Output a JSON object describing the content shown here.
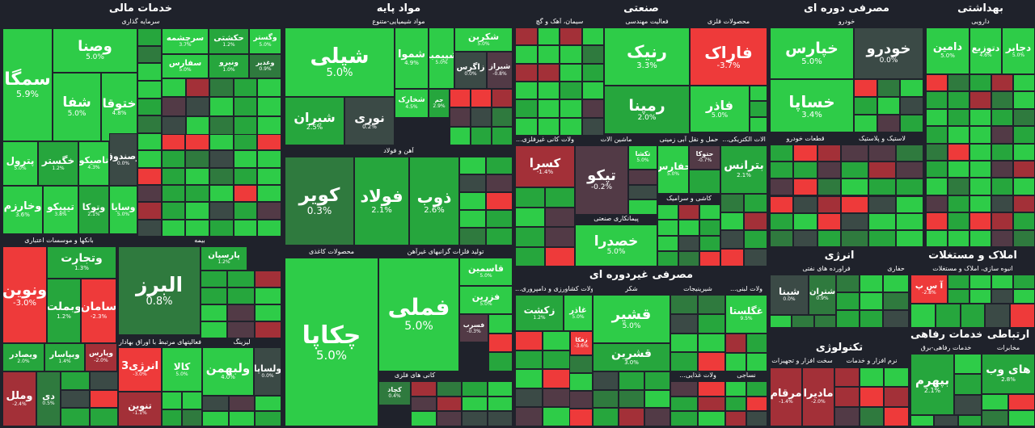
{
  "sectors": [
    {
      "id": "khadamat-mali",
      "title": "خدمات مالی"
    },
    {
      "id": "mavad-paye",
      "title": "مواد پایه"
    },
    {
      "id": "sanati",
      "title": "صنعتی"
    },
    {
      "id": "masrafi-dore",
      "title": "مصرفی دوره ای"
    },
    {
      "id": "behdashti",
      "title": "بهداشتی"
    },
    {
      "id": "masrafi-gheyr",
      "title": "مصرفی غیردوره ای"
    },
    {
      "id": "energy",
      "title": "انرژی"
    },
    {
      "id": "amlak",
      "title": "املاک و مستغلات"
    },
    {
      "id": "technology",
      "title": "تکنولوژی"
    },
    {
      "id": "refahi",
      "title": "خدمات رفاهی"
    },
    {
      "id": "ertebati",
      "title": "ارتباطی"
    }
  ],
  "groups": [
    {
      "id": "g-sarmaye",
      "label": "سرمایه گذاری"
    },
    {
      "id": "g-banks",
      "label": "بانکها و موسسات اعتباری"
    },
    {
      "id": "g-bime",
      "label": "بیمه"
    },
    {
      "id": "g-bourse",
      "label": "فعالیتهای مرتبط با اوراق بهادار"
    },
    {
      "id": "g-leasing",
      "label": "لیزینگ"
    },
    {
      "id": "g-shimi",
      "label": "مواد شیمیایی-متنوع"
    },
    {
      "id": "g-ahan",
      "label": "آهن و فولاد"
    },
    {
      "id": "g-kani",
      "label": "محصولات کاغذی"
    },
    {
      "id": "g-felezat",
      "label": "تولید فلزات گرانبهای غیرآهن"
    },
    {
      "id": "g-kani-felezi",
      "label": "کانی های فلزی"
    },
    {
      "id": "g-siman",
      "label": "سیمان، آهک و گچ"
    },
    {
      "id": "g-mohandesi",
      "label": "فعالیت مهندسی"
    },
    {
      "id": "g-felezi",
      "label": "محصولات فلزی"
    },
    {
      "id": "g-kani-gheyr",
      "label": "...ولات کانی غیرفلزی"
    },
    {
      "id": "g-mashin",
      "label": "ماشین الات"
    },
    {
      "id": "g-haml",
      "label": "حمل و نقل آبی زمینی"
    },
    {
      "id": "g-electric",
      "label": "...الات الکتریکی"
    },
    {
      "id": "g-pimankari",
      "label": "پیمانکاری صنعتی"
    },
    {
      "id": "g-kashi",
      "label": "کاشی و سرامیک"
    },
    {
      "id": "g-khodro",
      "label": "خودرو"
    },
    {
      "id": "g-ghataat",
      "label": "قطعات خودرو"
    },
    {
      "id": "g-lastik",
      "label": "لاستیک و پلاستیک"
    },
    {
      "id": "g-daroei",
      "label": "دارویی"
    },
    {
      "id": "g-keshavarzi",
      "label": "...ولات کشاورزی و دامپروری"
    },
    {
      "id": "g-shekar",
      "label": "شکر"
    },
    {
      "id": "g-shir",
      "label": "شیرینیجات"
    },
    {
      "id": "g-labani",
      "label": "...ولات لبنی"
    },
    {
      "id": "g-ghazaei",
      "label": "...ولات غذایی"
    },
    {
      "id": "g-nasaji",
      "label": "نساجی"
    },
    {
      "id": "g-naft",
      "label": "فراورده های نفتی"
    },
    {
      "id": "g-hafari",
      "label": "حفاری"
    },
    {
      "id": "g-anbooh",
      "label": "انبوه سازی، املاک و مستغلات"
    },
    {
      "id": "g-narmafzar",
      "label": "سخت افزار و تجهیزات"
    },
    {
      "id": "g-narm",
      "label": "نرم افزار و خدمات"
    },
    {
      "id": "g-refahi-sub",
      "label": "خدمات رفاهی-برق"
    },
    {
      "id": "g-mokhaberat",
      "label": "مخابرات"
    }
  ],
  "tiles": [
    {
      "n": "سمگا",
      "p": "5.9%",
      "c": "g2"
    },
    {
      "n": "وصنا",
      "p": "5.0%",
      "c": "g2"
    },
    {
      "n": "شفا",
      "p": "5.0%",
      "c": "g2"
    },
    {
      "n": "ختوقا",
      "p": "4.8%",
      "c": "g2"
    },
    {
      "n": "سرچشمه",
      "p": "3.7%",
      "c": "g2"
    },
    {
      "n": "حکشتی",
      "p": "1.2%",
      "c": "g1"
    },
    {
      "n": "وگستر",
      "p": "5.0%",
      "c": "g2"
    },
    {
      "n": "سفارس",
      "p": "5.0%",
      "c": "g2"
    },
    {
      "n": "ونیرو",
      "p": "1.0%",
      "c": "g1"
    },
    {
      "n": "وغدیر",
      "p": "0.9%",
      "c": "g0"
    },
    {
      "n": "پترول",
      "p": "5.0%",
      "c": "g2"
    },
    {
      "n": "خگستر",
      "p": "1.2%",
      "c": "g1"
    },
    {
      "n": "تاصیکو",
      "p": "4.3%",
      "c": "g2"
    },
    {
      "n": "وصندوق",
      "p": "0.0%",
      "c": "gd"
    },
    {
      "n": "وخارزم",
      "p": "3.6%",
      "c": "g2"
    },
    {
      "n": "تیپیکو",
      "p": "3.8%",
      "c": "g2"
    },
    {
      "n": "وتوکا",
      "p": "2.1%",
      "c": "g1"
    },
    {
      "n": "وسایا",
      "p": "5.0%",
      "c": "g2"
    },
    {
      "n": "ونوین",
      "p": "-3.0%",
      "c": "r2"
    },
    {
      "n": "وتجارت",
      "p": "1.3%",
      "c": "g1"
    },
    {
      "n": "وبملت",
      "p": "1.2%",
      "c": "g1"
    },
    {
      "n": "سامان",
      "p": "-2.3%",
      "c": "r2"
    },
    {
      "n": "البرز",
      "p": "0.8%",
      "c": "g0"
    },
    {
      "n": "پارسیان",
      "p": "1.2%",
      "c": "g1"
    },
    {
      "n": "ویصادر",
      "p": "2.0%",
      "c": "g1"
    },
    {
      "n": "وبپاسار",
      "p": "1.4%",
      "c": "g1"
    },
    {
      "n": "وپارس",
      "p": "-2.0%",
      "c": "r1"
    },
    {
      "n": "وملل",
      "p": "-2.4%",
      "c": "r1"
    },
    {
      "n": "دی",
      "p": "0.5%",
      "c": "g0"
    },
    {
      "n": "انرژی3",
      "p": "-3.0%",
      "c": "r2"
    },
    {
      "n": "کالا",
      "p": "5.0%",
      "c": "g2"
    },
    {
      "n": "تنوین",
      "p": "-1.1%",
      "c": "r1"
    },
    {
      "n": "ولبهمن",
      "p": "4.0%",
      "c": "g2"
    },
    {
      "n": "ولساپا",
      "p": "0.0%",
      "c": "gd"
    },
    {
      "n": "شپلی",
      "p": "5.0%",
      "c": "g2"
    },
    {
      "n": "شموا",
      "p": "4.9%",
      "c": "g2"
    },
    {
      "n": "شپیمبر",
      "p": "5.0%",
      "c": "g2"
    },
    {
      "n": "شکربن",
      "p": "5.0%",
      "c": "g2"
    },
    {
      "n": "زاگرس",
      "p": "0.0%",
      "c": "gd"
    },
    {
      "n": "شیراز",
      "p": "-0.8%",
      "c": "r0"
    },
    {
      "n": "شیران",
      "p": "2.5%",
      "c": "g1"
    },
    {
      "n": "نوری",
      "p": "0.2%",
      "c": "gd"
    },
    {
      "n": "شخارک",
      "p": "4.5%",
      "c": "g2"
    },
    {
      "n": "جم",
      "p": "2.9%",
      "c": "g1"
    },
    {
      "n": "کویر",
      "p": "0.3%",
      "c": "g0"
    },
    {
      "n": "فولاد",
      "p": "2.1%",
      "c": "g1"
    },
    {
      "n": "ذوب",
      "p": "2.6%",
      "c": "g1"
    },
    {
      "n": "چکاپا",
      "p": "5.0%",
      "c": "g2"
    },
    {
      "n": "فملی",
      "p": "5.0%",
      "c": "g2"
    },
    {
      "n": "قاسمین",
      "p": "5.0%",
      "c": "g2"
    },
    {
      "n": "فزرین",
      "p": "5.0%",
      "c": "g2"
    },
    {
      "n": "فسرب",
      "p": "-0.3%",
      "c": "r0"
    },
    {
      "n": "کچاد",
      "p": "0.4%",
      "c": "g0"
    },
    {
      "n": "رنیک",
      "p": "3.3%",
      "c": "g2"
    },
    {
      "n": "فاراک",
      "p": "-3.7%",
      "c": "r2"
    },
    {
      "n": "رمپنا",
      "p": "2.0%",
      "c": "g1"
    },
    {
      "n": "فاذر",
      "p": "5.0%",
      "c": "g2"
    },
    {
      "n": "کسرا",
      "p": "-1.4%",
      "c": "r1"
    },
    {
      "n": "تپکو",
      "p": "-0.2%",
      "c": "r0"
    },
    {
      "n": "تکشا",
      "p": "5.0%",
      "c": "g2"
    },
    {
      "n": "حتوکا",
      "p": "-0.7%",
      "c": "r0"
    },
    {
      "n": "حفارس",
      "p": "5.0%",
      "c": "g2"
    },
    {
      "n": "بترانس",
      "p": "2.1%",
      "c": "g1"
    },
    {
      "n": "خصدرا",
      "p": "5.0%",
      "c": "g2"
    },
    {
      "n": "خپارس",
      "p": "5.0%",
      "c": "g2"
    },
    {
      "n": "خودرو",
      "p": "0.0%",
      "c": "gd"
    },
    {
      "n": "خساپا",
      "p": "3.4%",
      "c": "g2"
    },
    {
      "n": "دامین",
      "p": "5.0%",
      "c": "g2"
    },
    {
      "n": "دتوزیع",
      "p": "4.6%",
      "c": "g2"
    },
    {
      "n": "دجابر",
      "p": "5.0%",
      "c": "g2"
    },
    {
      "n": "زکشت",
      "p": "1.2%",
      "c": "g1"
    },
    {
      "n": "غاذر",
      "p": "5.0%",
      "c": "g2"
    },
    {
      "n": "زفکا",
      "p": "-3.6%",
      "c": "r2"
    },
    {
      "n": "قشیر",
      "p": "5.0%",
      "c": "g2"
    },
    {
      "n": "قشرین",
      "p": "3.0%",
      "c": "g1"
    },
    {
      "n": "غگلستا",
      "p": "9.5%",
      "c": "g2"
    },
    {
      "n": "شبنا",
      "p": "0.0%",
      "c": "gd"
    },
    {
      "n": "شتران",
      "p": "0.9%",
      "c": "g0"
    },
    {
      "n": "آ س پ",
      "p": "-2.8%",
      "c": "r2"
    },
    {
      "n": "مادیرا",
      "p": "-2.0%",
      "c": "r1"
    },
    {
      "n": "مرقام",
      "p": "-1.4%",
      "c": "r1"
    },
    {
      "n": "بپهرم",
      "p": "2.1%",
      "c": "g1"
    },
    {
      "n": "های وب",
      "p": "2.8%",
      "c": "g1"
    }
  ],
  "colors": {
    "strong_up": "#2ecc48",
    "up": "#26a63d",
    "slight_up": "#2f7a3e",
    "flat": "#3b4a46",
    "slight_down": "#523a46",
    "down": "#a33038",
    "strong_down": "#ee3a3a",
    "background": "#1f222b"
  }
}
